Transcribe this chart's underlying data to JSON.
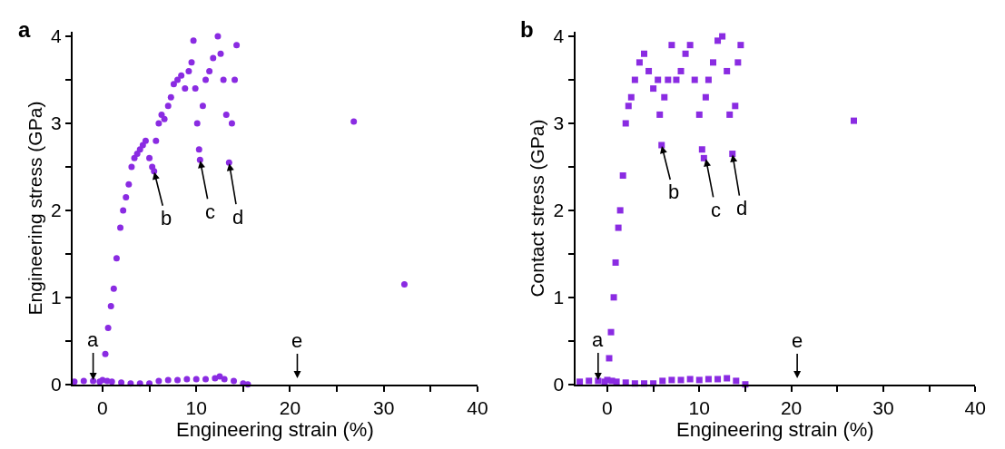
{
  "chart_data": [
    {
      "type": "scatter",
      "xlabel": "Engineering strain (%)",
      "ylabel": "Engineering stress (GPa)",
      "marker": "circle",
      "color": "#8a2be2",
      "x": [
        -3,
        -2,
        -1,
        -0.3,
        0,
        0.3,
        0.6,
        0.9,
        1.2,
        1.5,
        1.9,
        2.2,
        2.5,
        2.8,
        3.1,
        3.4,
        3.7,
        4.0,
        4.3,
        4.6,
        5.0,
        5.3,
        5.5,
        5.7,
        6.0,
        6.3,
        6.6,
        7.0,
        7.3,
        7.6,
        8.0,
        8.4,
        8.8,
        9.2,
        9.5,
        9.7,
        9.9,
        10.1,
        10.3,
        10.4,
        10.7,
        11.0,
        11.4,
        11.8,
        12.3,
        12.6,
        12.9,
        13.2,
        13.5,
        13.8,
        14.1,
        14.3,
        0.5,
        1,
        2,
        3,
        4,
        5,
        6,
        7,
        8,
        9,
        10,
        11,
        12,
        12.5,
        13,
        14,
        15,
        15.5,
        26.8,
        32.2
      ],
      "values": [
        0.03,
        0.04,
        0.04,
        0.03,
        0.05,
        0.35,
        0.65,
        0.9,
        1.1,
        1.45,
        1.8,
        2.0,
        2.15,
        2.3,
        2.5,
        2.6,
        2.65,
        2.7,
        2.75,
        2.8,
        2.6,
        2.5,
        2.45,
        2.8,
        3.0,
        3.1,
        3.05,
        3.2,
        3.3,
        3.45,
        3.5,
        3.55,
        3.4,
        3.6,
        3.7,
        3.95,
        3.4,
        3.0,
        2.7,
        2.58,
        3.2,
        3.5,
        3.6,
        3.75,
        4.0,
        3.8,
        3.5,
        3.1,
        2.55,
        3.0,
        3.5,
        3.9,
        0.04,
        0.03,
        0.02,
        0.01,
        0.01,
        0.01,
        0.04,
        0.05,
        0.05,
        0.06,
        0.06,
        0.06,
        0.07,
        0.09,
        0.06,
        0.04,
        0.01,
        0.0,
        3.02,
        1.15
      ],
      "xlim": [
        -3.2,
        40
      ],
      "ylim": [
        0,
        4.05
      ],
      "xticks": [
        0,
        {
          "value": 5,
          "label": null
        },
        10,
        {
          "value": 15,
          "label": null
        },
        20,
        {
          "value": 25,
          "label": null
        },
        30,
        {
          "value": 35,
          "label": null
        },
        40
      ],
      "yticks": [
        0,
        {
          "value": 0.5,
          "label": null
        },
        1,
        {
          "value": 1.5,
          "label": null
        },
        2,
        {
          "value": 2.5,
          "label": null
        },
        3,
        {
          "value": 3.5,
          "label": null
        },
        4
      ],
      "annotations": [
        "a",
        "e",
        {
          "text": "a",
          "x": -1,
          "y": 0.04
        },
        {
          "text": "b",
          "x": 5.5,
          "y": 2.45
        },
        {
          "text": "c",
          "x": 10.4,
          "y": 2.58
        },
        {
          "text": "d",
          "x": 13.5,
          "y": 2.55
        }
      ]
    },
    {
      "type": "scatter",
      "xlabel": "Engineering strain (%)",
      "ylabel": "Contact stress (GPa)",
      "marker": "square",
      "color": "#8a2be2",
      "x": [
        -3,
        -2,
        -1,
        -0.3,
        0,
        0.2,
        0.4,
        0.7,
        0.9,
        1.2,
        1.4,
        1.7,
        2.0,
        2.3,
        2.6,
        3.0,
        3.5,
        4.0,
        4.5,
        5.0,
        5.5,
        5.7,
        5.9,
        6.2,
        6.6,
        7.0,
        7.5,
        8.0,
        8.5,
        9.0,
        9.5,
        10.0,
        10.3,
        10.5,
        10.7,
        11.0,
        11.5,
        12.0,
        12.5,
        13.0,
        13.3,
        13.6,
        13.9,
        14.2,
        14.5,
        0.5,
        1,
        2,
        3,
        4,
        5,
        6,
        7,
        8,
        9,
        10,
        11,
        12,
        13,
        14,
        15,
        26.8
      ],
      "values": [
        0.03,
        0.04,
        0.04,
        0.03,
        0.05,
        0.3,
        0.6,
        1.0,
        1.4,
        1.8,
        2.0,
        2.4,
        3.0,
        3.2,
        3.3,
        3.5,
        3.7,
        3.8,
        3.6,
        3.4,
        3.5,
        3.1,
        2.75,
        3.3,
        3.5,
        3.9,
        3.5,
        3.6,
        3.8,
        3.9,
        3.5,
        3.1,
        2.7,
        2.6,
        3.3,
        3.5,
        3.7,
        3.95,
        4.0,
        3.6,
        3.1,
        2.65,
        3.2,
        3.7,
        3.9,
        0.04,
        0.03,
        0.02,
        0.01,
        0.01,
        0.01,
        0.04,
        0.05,
        0.05,
        0.06,
        0.05,
        0.06,
        0.06,
        0.07,
        0.04,
        0.0,
        3.03
      ],
      "xlim": [
        -3.5,
        40
      ],
      "ylim": [
        0,
        4.05
      ],
      "xticks": [
        0,
        {
          "value": 5,
          "label": null
        },
        10,
        {
          "value": 15,
          "label": null
        },
        20,
        {
          "value": 25,
          "label": null
        },
        30,
        {
          "value": 35,
          "label": null
        },
        40
      ],
      "yticks": [
        0,
        {
          "value": 0.5,
          "label": null
        },
        1,
        {
          "value": 1.5,
          "label": null
        },
        2,
        {
          "value": 2.5,
          "label": null
        },
        3,
        {
          "value": 3.5,
          "label": null
        },
        4
      ],
      "annotations": [
        "b",
        "e",
        {
          "text": "a",
          "x": -1,
          "y": 0.04
        },
        {
          "text": "b",
          "x": 5.9,
          "y": 2.75
        },
        {
          "text": "c",
          "x": 10.7,
          "y": 2.6
        },
        {
          "text": "d",
          "x": 13.6,
          "y": 2.65
        }
      ]
    }
  ]
}
